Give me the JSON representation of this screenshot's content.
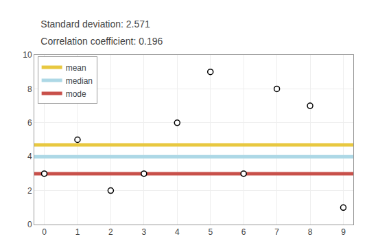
{
  "chart_data": {
    "type": "scatter",
    "title": "Standard deviation: 2.571",
    "subtitle": "Correlation coefficient: 0.196",
    "x": [
      0,
      1,
      2,
      3,
      4,
      5,
      6,
      7,
      8,
      9
    ],
    "values": [
      3,
      5,
      2,
      3,
      6,
      9,
      3,
      8,
      7,
      1
    ],
    "color": "#000000",
    "marker": "circle-open",
    "hlines": [
      {
        "name": "mean",
        "value": 4.7,
        "color": "#E8C840"
      },
      {
        "name": "median",
        "value": 4.0,
        "color": "#ADD8E6"
      },
      {
        "name": "mode",
        "value": 3.0,
        "color": "#C8504A"
      }
    ],
    "xlim": [
      -0.3,
      9.3
    ],
    "ylim": [
      0,
      10
    ],
    "xticks": [
      0,
      1,
      2,
      3,
      4,
      5,
      6,
      7,
      8,
      9
    ],
    "yticks": [
      0,
      2,
      4,
      6,
      8,
      10
    ],
    "grid": true,
    "legend": "upper left"
  }
}
